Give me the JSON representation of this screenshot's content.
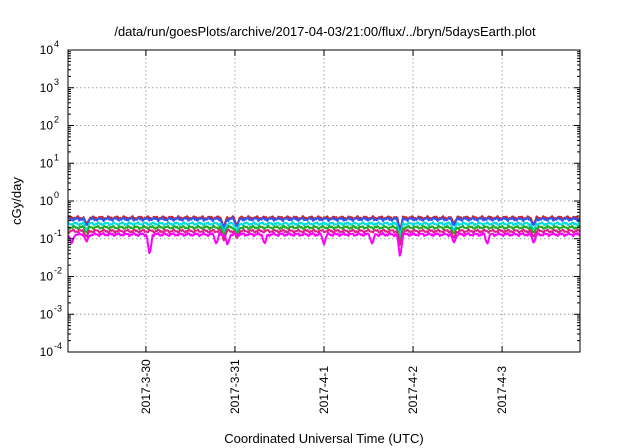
{
  "chart_data": {
    "type": "line",
    "title": "/data/run/goesPlots/archive/2017-04-03/21:00/flux/../bryn/5daysEarth.plot",
    "xlabel": "Coordinated Universal Time (UTC)",
    "ylabel": "cGy/day",
    "yscale": "log",
    "ylim": [
      0.0001,
      10000
    ],
    "xlim": [
      "2017-03-29T03:00",
      "2017-04-03T21:00"
    ],
    "grid": true,
    "legend": "none",
    "y_ticks": [
      {
        "base": "10",
        "exp": "-4",
        "value": 0.0001
      },
      {
        "base": "10",
        "exp": "-3",
        "value": 0.001
      },
      {
        "base": "10",
        "exp": "-2",
        "value": 0.01
      },
      {
        "base": "10",
        "exp": "-1",
        "value": 0.1
      },
      {
        "base": "10",
        "exp": "0",
        "value": 1
      },
      {
        "base": "10",
        "exp": "1",
        "value": 10
      },
      {
        "base": "10",
        "exp": "2",
        "value": 100
      },
      {
        "base": "10",
        "exp": "3",
        "value": 1000
      },
      {
        "base": "10",
        "exp": "4",
        "value": 10000
      }
    ],
    "x_ticks": [
      {
        "label": "2017-3-30",
        "value": "2017-03-30T00:00"
      },
      {
        "label": "2017-3-31",
        "value": "2017-03-31T00:00"
      },
      {
        "label": "2017-4-1",
        "value": "2017-04-01T00:00"
      },
      {
        "label": "2017-4-2",
        "value": "2017-04-02T00:00"
      },
      {
        "label": "2017-4-3",
        "value": "2017-04-03T00:00"
      }
    ],
    "series": [
      {
        "color": "#cc2222",
        "base": 0.36,
        "dips": [
          {
            "t": "2017-03-29T08:00",
            "v": 0.24
          },
          {
            "t": "2017-03-30T21:00",
            "v": 0.2
          },
          {
            "t": "2017-03-31T00:30",
            "v": 0.22
          },
          {
            "t": "2017-04-01T20:30",
            "v": 0.18
          },
          {
            "t": "2017-04-02T11:00",
            "v": 0.25
          },
          {
            "t": "2017-04-03T08:30",
            "v": 0.24
          }
        ]
      },
      {
        "color": "#3355ee",
        "base": 0.33,
        "dips": [
          {
            "t": "2017-03-29T08:00",
            "v": 0.22
          },
          {
            "t": "2017-03-30T21:00",
            "v": 0.18
          },
          {
            "t": "2017-03-31T00:30",
            "v": 0.2
          },
          {
            "t": "2017-04-01T20:30",
            "v": 0.15
          },
          {
            "t": "2017-04-02T11:00",
            "v": 0.22
          },
          {
            "t": "2017-04-03T08:30",
            "v": 0.22
          }
        ]
      },
      {
        "color": "#00dddd",
        "base": 0.25,
        "dips": [
          {
            "t": "2017-03-29T08:00",
            "v": 0.17
          },
          {
            "t": "2017-03-30T21:00",
            "v": 0.14
          },
          {
            "t": "2017-03-31T00:30",
            "v": 0.15
          },
          {
            "t": "2017-04-01T20:30",
            "v": 0.11
          },
          {
            "t": "2017-04-02T11:00",
            "v": 0.16
          },
          {
            "t": "2017-04-03T08:30",
            "v": 0.17
          }
        ]
      },
      {
        "color": "#22aa22",
        "base": 0.2,
        "dips": [
          {
            "t": "2017-03-29T08:00",
            "v": 0.14
          },
          {
            "t": "2017-03-30T21:00",
            "v": 0.11
          },
          {
            "t": "2017-03-31T00:30",
            "v": 0.12
          },
          {
            "t": "2017-04-01T20:30",
            "v": 0.08
          },
          {
            "t": "2017-04-02T11:00",
            "v": 0.13
          },
          {
            "t": "2017-04-03T08:30",
            "v": 0.14
          }
        ]
      },
      {
        "color": "#dd2288",
        "base": 0.16,
        "dips": [
          {
            "t": "2017-03-29T08:00",
            "v": 0.11
          },
          {
            "t": "2017-03-30T21:00",
            "v": 0.09
          },
          {
            "t": "2017-03-31T00:30",
            "v": 0.1
          },
          {
            "t": "2017-04-01T20:30",
            "v": 0.06
          },
          {
            "t": "2017-04-02T11:00",
            "v": 0.1
          },
          {
            "t": "2017-04-03T08:30",
            "v": 0.11
          }
        ]
      },
      {
        "color": "#ff00ff",
        "base": 0.13,
        "dips": [
          {
            "t": "2017-03-29T04:00",
            "v": 0.07
          },
          {
            "t": "2017-03-29T08:00",
            "v": 0.08
          },
          {
            "t": "2017-03-30T01:00",
            "v": 0.035
          },
          {
            "t": "2017-03-30T19:00",
            "v": 0.07
          },
          {
            "t": "2017-03-30T22:00",
            "v": 0.065
          },
          {
            "t": "2017-03-31T08:00",
            "v": 0.07
          },
          {
            "t": "2017-04-01T00:00",
            "v": 0.07
          },
          {
            "t": "2017-04-01T13:00",
            "v": 0.07
          },
          {
            "t": "2017-04-01T20:30",
            "v": 0.03
          },
          {
            "t": "2017-04-02T11:00",
            "v": 0.075
          },
          {
            "t": "2017-04-02T20:00",
            "v": 0.07
          },
          {
            "t": "2017-04-03T08:30",
            "v": 0.075
          }
        ]
      }
    ]
  }
}
